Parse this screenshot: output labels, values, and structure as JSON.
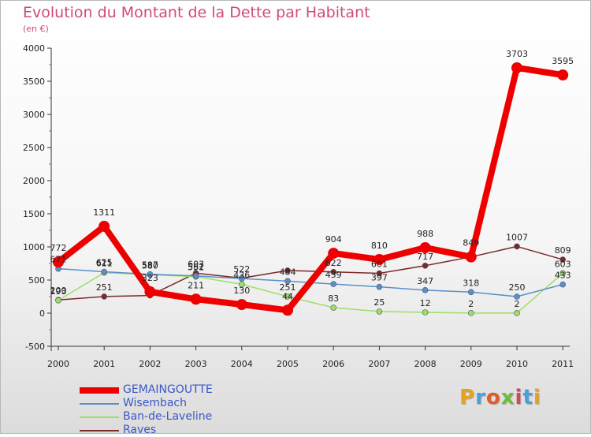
{
  "title": "Evolution du Montant de la Dette par Habitant",
  "subtitle": "(en €)",
  "logo": {
    "text": "Proxiti",
    "colors": [
      "#e8a020",
      "#4a9fd8",
      "#e25b2a",
      "#6cbf3a",
      "#d8455a",
      "#4a9fd8",
      "#e8a020"
    ]
  },
  "chart_data": {
    "type": "line",
    "title": "Evolution du Montant de la Dette par Habitant",
    "subtitle": "(en €)",
    "x": [
      "2000",
      "2001",
      "2002",
      "2003",
      "2004",
      "2005",
      "2006",
      "2007",
      "2008",
      "2009",
      "2010",
      "2011"
    ],
    "ylim": [
      -500,
      4000
    ],
    "yticks": [
      -500,
      0,
      500,
      1000,
      1500,
      2000,
      2500,
      3000,
      3500,
      4000
    ],
    "grid": false,
    "legend_position": "bottom-left",
    "series": [
      {
        "name": "GEMAINGOUTTE",
        "color": "#ee0000",
        "width": 8,
        "marker": 7,
        "values": [
          772,
          1311,
          323,
          211,
          130,
          44,
          904,
          810,
          988,
          849,
          3703,
          3595
        ],
        "labels": [
          "772",
          "1311",
          "323",
          "211",
          "130",
          "44",
          "904",
          "810",
          "988",
          "849",
          "3703",
          "3595"
        ]
      },
      {
        "name": "Wisembach",
        "color": "#5a8fc8",
        "width": 1.5,
        "marker": 3.5,
        "values": [
          671,
          625,
          587,
          562,
          522,
          484,
          439,
          397,
          347,
          318,
          250,
          433
        ],
        "labels": [
          "671",
          "625",
          "587",
          "562",
          "522",
          "484",
          "439",
          "397",
          "347",
          "318",
          "250",
          "433"
        ]
      },
      {
        "name": "Ban-de-Laveline",
        "color": "#9be064",
        "width": 1.5,
        "marker": 3.5,
        "values": [
          193,
          611,
          580,
          551,
          436,
          251,
          83,
          25,
          12,
          2,
          2,
          603
        ],
        "labels": [
          "193",
          "611",
          "580",
          "551",
          "436",
          "251",
          "83",
          "25",
          "12",
          "2",
          "2",
          "603"
        ]
      },
      {
        "name": "Raves",
        "color": "#7a2a2a",
        "width": 1.5,
        "marker": 3.5,
        "values": [
          200,
          251,
          267,
          603,
          528,
          644,
          622,
          601,
          717,
          849,
          1007,
          809
        ],
        "labels": [
          "200",
          "251",
          "",
          "603",
          "",
          "",
          "622",
          "601",
          "717",
          "",
          "1007",
          "809"
        ]
      }
    ]
  }
}
